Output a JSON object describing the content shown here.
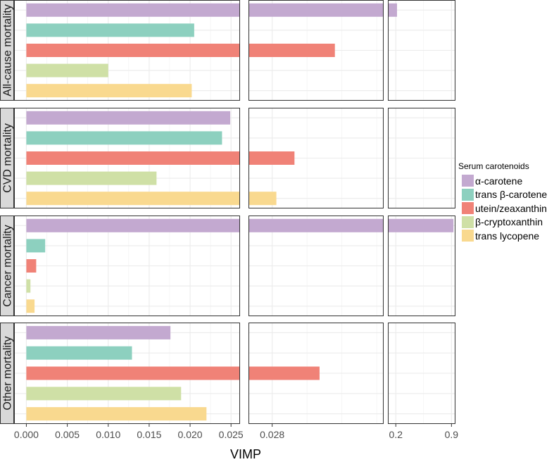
{
  "chart_data": {
    "type": "bar",
    "orientation": "horizontal",
    "xlabel": "VIMP",
    "legend_title": "Serum carotenoids",
    "legend_position": "right",
    "series": [
      {
        "name": "α-carotene",
        "color": "#C3A9D0"
      },
      {
        "name": "trans β-carotene",
        "color": "#8DD0BF"
      },
      {
        "name": "utein/zeaxanthin",
        "color": "#F08277"
      },
      {
        "name": "β-cryptoxanthin",
        "color": "#CFE0A6"
      },
      {
        "name": "trans lycopene",
        "color": "#F9D98F"
      }
    ],
    "x_panels": [
      {
        "range": [
          -0.0015,
          0.0261
        ],
        "ticks": [
          0.0,
          0.005,
          0.01,
          0.015,
          0.02,
          0.025
        ],
        "tick_labels": [
          "0.000",
          "0.005",
          "0.010",
          "0.015",
          "0.020",
          "0.025"
        ]
      },
      {
        "range": [
          0.0263,
          0.036
        ],
        "ticks": [
          0.028
        ],
        "tick_labels": [
          "0.028"
        ]
      },
      {
        "range": [
          0.1,
          0.95
        ],
        "ticks": [
          0.2,
          0.9
        ],
        "tick_labels": [
          "0.2",
          "0.9"
        ]
      }
    ],
    "facets": [
      {
        "label": "All-cause mortality",
        "values": [
          0.215,
          0.0205,
          0.0325,
          0.01,
          0.0202
        ]
      },
      {
        "label": "CVD mortality",
        "values": [
          0.0249,
          0.0239,
          0.0296,
          0.0159,
          0.0283
        ]
      },
      {
        "label": "Cancer mortality",
        "values": [
          0.925,
          0.0023,
          0.0012,
          0.0005,
          0.001
        ]
      },
      {
        "label": "Other mortality",
        "values": [
          0.0176,
          0.0129,
          0.0314,
          0.0189,
          0.022
        ]
      }
    ]
  }
}
